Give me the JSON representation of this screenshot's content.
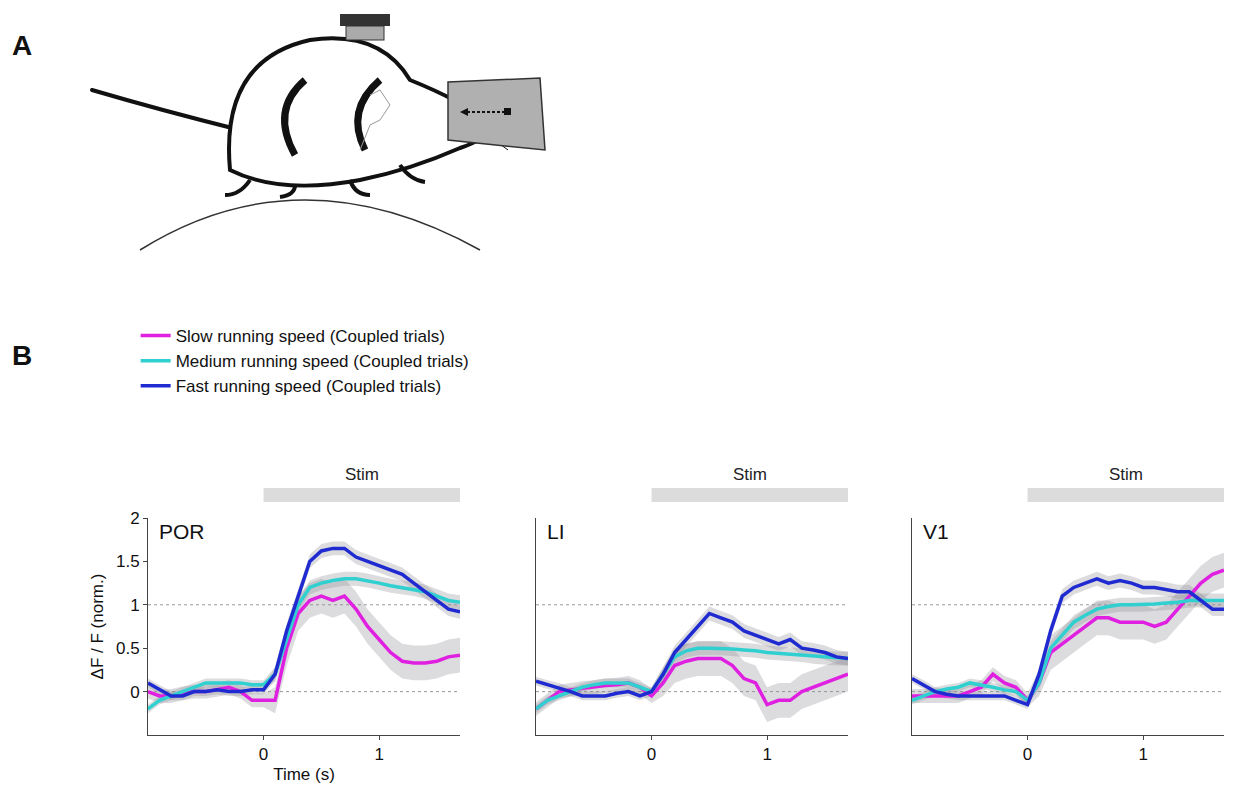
{
  "panel_labels": [
    "A",
    "B"
  ],
  "chart_data": [
    {
      "type": "line",
      "title": "POR",
      "x": [
        -1.0,
        -0.9,
        -0.8,
        -0.7,
        -0.6,
        -0.5,
        -0.4,
        -0.3,
        -0.2,
        -0.1,
        0,
        0.1,
        0.2,
        0.3,
        0.4,
        0.5,
        0.6,
        0.7,
        0.8,
        0.9,
        1.0,
        1.1,
        1.2,
        1.3,
        1.4,
        1.5,
        1.6,
        1.7
      ],
      "xlim": [
        -1,
        1.7
      ],
      "xticks": [
        0,
        1
      ],
      "ylim": [
        -0.5,
        2
      ],
      "yticks": [
        0,
        0.5,
        1,
        1.5,
        2
      ],
      "x_label": "Time (s)",
      "y_label": "ΔF / F (norm.)",
      "reference_lines": [
        0,
        1
      ],
      "stimulus": {
        "label": "Stim",
        "start": 0,
        "end": 1.7
      },
      "legend": "top left",
      "series": [
        {
          "name": "Slow running speed (Coupled trials)",
          "color": "#e020e0",
          "values": [
            0,
            -0.05,
            -0.05,
            -0.02,
            0,
            0,
            0.02,
            0.05,
            0,
            -0.1,
            -0.1,
            -0.1,
            0.5,
            0.9,
            1.05,
            1.1,
            1.05,
            1.1,
            0.95,
            0.75,
            0.6,
            0.45,
            0.35,
            0.33,
            0.33,
            0.35,
            0.4,
            0.42
          ],
          "error": [
            0.08,
            0.08,
            0.08,
            0.08,
            0.08,
            0.08,
            0.08,
            0.08,
            0.08,
            0.08,
            0.08,
            0.15,
            0.2,
            0.2,
            0.2,
            0.2,
            0.2,
            0.2,
            0.2,
            0.2,
            0.2,
            0.2,
            0.2,
            0.2,
            0.2,
            0.2,
            0.2,
            0.2
          ]
        },
        {
          "name": "Medium running speed (Coupled trials)",
          "color": "#30d0d0",
          "values": [
            -0.2,
            -0.1,
            -0.05,
            0,
            0.05,
            0.1,
            0.1,
            0.1,
            0.1,
            0.08,
            0.08,
            0.2,
            0.6,
            1.0,
            1.2,
            1.25,
            1.28,
            1.3,
            1.3,
            1.28,
            1.25,
            1.22,
            1.2,
            1.18,
            1.15,
            1.1,
            1.05,
            1.03
          ],
          "error": [
            0.05,
            0.05,
            0.05,
            0.05,
            0.05,
            0.05,
            0.05,
            0.05,
            0.05,
            0.05,
            0.05,
            0.08,
            0.08,
            0.08,
            0.08,
            0.08,
            0.08,
            0.08,
            0.08,
            0.08,
            0.08,
            0.08,
            0.08,
            0.08,
            0.08,
            0.08,
            0.08,
            0.08
          ]
        },
        {
          "name": "Fast running speed (Coupled trials)",
          "color": "#1f2bd0",
          "values": [
            0.1,
            0.02,
            -0.05,
            -0.05,
            0,
            0,
            0.02,
            0,
            0,
            0.02,
            0.02,
            0.2,
            0.7,
            1.1,
            1.5,
            1.62,
            1.65,
            1.65,
            1.55,
            1.5,
            1.45,
            1.4,
            1.35,
            1.25,
            1.15,
            1.05,
            0.95,
            0.92
          ],
          "error": [
            0.05,
            0.05,
            0.05,
            0.05,
            0.05,
            0.05,
            0.05,
            0.05,
            0.05,
            0.05,
            0.05,
            0.08,
            0.08,
            0.08,
            0.08,
            0.08,
            0.08,
            0.08,
            0.08,
            0.08,
            0.08,
            0.08,
            0.08,
            0.08,
            0.08,
            0.08,
            0.08,
            0.08
          ]
        }
      ]
    },
    {
      "type": "line",
      "title": "LI",
      "x": [
        -1.0,
        -0.9,
        -0.8,
        -0.7,
        -0.6,
        -0.5,
        -0.4,
        -0.3,
        -0.2,
        -0.1,
        0,
        0.1,
        0.2,
        0.3,
        0.4,
        0.5,
        0.6,
        0.7,
        0.8,
        0.9,
        1.0,
        1.1,
        1.2,
        1.3,
        1.4,
        1.5,
        1.6,
        1.7
      ],
      "xlim": [
        -1,
        1.7
      ],
      "xticks": [
        0,
        1
      ],
      "ylim": [
        -0.5,
        2
      ],
      "yticks": [
        0,
        0.5,
        1,
        1.5,
        2
      ],
      "tick_labels": "x",
      "reference_lines": [
        0,
        1
      ],
      "stimulus": {
        "label": "Stim",
        "start": 0,
        "end": 1.7
      },
      "series": [
        {
          "name": "Slow running speed (Coupled trials)",
          "color": "#e020e0",
          "values": [
            -0.2,
            -0.1,
            0,
            0.02,
            0.04,
            0.05,
            0.07,
            0.08,
            0.1,
            0.05,
            -0.05,
            0.1,
            0.3,
            0.35,
            0.38,
            0.38,
            0.38,
            0.3,
            0.15,
            0.1,
            -0.15,
            -0.1,
            -0.1,
            0,
            0.05,
            0.1,
            0.15,
            0.2
          ],
          "error": [
            0.08,
            0.08,
            0.08,
            0.08,
            0.08,
            0.08,
            0.08,
            0.08,
            0.08,
            0.08,
            0.08,
            0.15,
            0.2,
            0.2,
            0.2,
            0.2,
            0.2,
            0.2,
            0.2,
            0.2,
            0.2,
            0.2,
            0.2,
            0.2,
            0.2,
            0.2,
            0.2,
            0.2
          ]
        },
        {
          "name": "Medium running speed (Coupled trials)",
          "color": "#30d0d0",
          "values": [
            -0.2,
            -0.1,
            -0.05,
            0,
            0.05,
            0.08,
            0.1,
            0.1,
            0.1,
            0.05,
            0,
            0.2,
            0.4,
            0.47,
            0.5,
            0.5,
            0.5,
            0.49,
            0.48,
            0.47,
            0.45,
            0.44,
            0.43,
            0.42,
            0.4,
            0.39,
            0.38,
            0.38
          ],
          "error": [
            0.05,
            0.05,
            0.05,
            0.05,
            0.05,
            0.05,
            0.05,
            0.05,
            0.05,
            0.05,
            0.05,
            0.08,
            0.08,
            0.08,
            0.08,
            0.08,
            0.08,
            0.08,
            0.08,
            0.08,
            0.08,
            0.08,
            0.08,
            0.08,
            0.08,
            0.08,
            0.08,
            0.08
          ]
        },
        {
          "name": "Fast running speed (Coupled trials)",
          "color": "#1f2bd0",
          "values": [
            0.12,
            0.08,
            0.05,
            0,
            -0.05,
            -0.05,
            -0.05,
            -0.02,
            0,
            -0.05,
            0,
            0.2,
            0.45,
            0.6,
            0.75,
            0.9,
            0.85,
            0.8,
            0.7,
            0.65,
            0.6,
            0.55,
            0.6,
            0.5,
            0.48,
            0.45,
            0.4,
            0.38
          ],
          "error": [
            0.05,
            0.05,
            0.05,
            0.05,
            0.05,
            0.05,
            0.05,
            0.05,
            0.05,
            0.05,
            0.05,
            0.08,
            0.08,
            0.08,
            0.08,
            0.08,
            0.08,
            0.08,
            0.08,
            0.08,
            0.08,
            0.08,
            0.08,
            0.08,
            0.08,
            0.08,
            0.08,
            0.08
          ]
        }
      ]
    },
    {
      "type": "line",
      "title": "V1",
      "x": [
        -1.0,
        -0.9,
        -0.8,
        -0.7,
        -0.6,
        -0.5,
        -0.4,
        -0.3,
        -0.2,
        -0.1,
        0,
        0.1,
        0.2,
        0.3,
        0.4,
        0.5,
        0.6,
        0.7,
        0.8,
        0.9,
        1.0,
        1.1,
        1.2,
        1.3,
        1.4,
        1.5,
        1.6,
        1.7
      ],
      "xlim": [
        -1,
        1.7
      ],
      "xticks": [
        0,
        1
      ],
      "ylim": [
        -0.5,
        2
      ],
      "yticks": [
        0,
        0.5,
        1,
        1.5,
        2
      ],
      "tick_labels": "x",
      "reference_lines": [
        0,
        1
      ],
      "stimulus": {
        "label": "Stim",
        "start": 0,
        "end": 1.7
      },
      "series": [
        {
          "name": "Slow running speed (Coupled trials)",
          "color": "#e020e0",
          "values": [
            -0.05,
            -0.05,
            -0.05,
            -0.05,
            -0.05,
            0,
            0.05,
            0.2,
            0.1,
            0.05,
            -0.1,
            0.1,
            0.45,
            0.55,
            0.65,
            0.75,
            0.85,
            0.85,
            0.8,
            0.8,
            0.8,
            0.75,
            0.8,
            0.95,
            1.1,
            1.25,
            1.35,
            1.4
          ],
          "error": [
            0.08,
            0.08,
            0.08,
            0.08,
            0.08,
            0.08,
            0.08,
            0.08,
            0.08,
            0.08,
            0.08,
            0.15,
            0.2,
            0.2,
            0.2,
            0.2,
            0.2,
            0.2,
            0.2,
            0.2,
            0.2,
            0.2,
            0.2,
            0.2,
            0.2,
            0.2,
            0.2,
            0.2
          ]
        },
        {
          "name": "Medium running speed (Coupled trials)",
          "color": "#30d0d0",
          "values": [
            -0.1,
            -0.05,
            0,
            0.03,
            0.05,
            0.1,
            0.08,
            0.05,
            0.02,
            0,
            -0.1,
            0.1,
            0.5,
            0.65,
            0.8,
            0.88,
            0.95,
            0.98,
            1.0,
            1.0,
            1.0,
            1.01,
            1.02,
            1.03,
            1.05,
            1.05,
            1.05,
            1.05
          ],
          "error": [
            0.05,
            0.05,
            0.05,
            0.05,
            0.05,
            0.05,
            0.05,
            0.05,
            0.05,
            0.05,
            0.05,
            0.08,
            0.08,
            0.08,
            0.08,
            0.08,
            0.08,
            0.08,
            0.08,
            0.08,
            0.08,
            0.08,
            0.08,
            0.08,
            0.08,
            0.08,
            0.08,
            0.08
          ]
        },
        {
          "name": "Fast running speed (Coupled trials)",
          "color": "#1f2bd0",
          "values": [
            0.15,
            0.08,
            0,
            -0.03,
            -0.05,
            -0.05,
            -0.05,
            -0.05,
            -0.05,
            -0.1,
            -0.15,
            0.2,
            0.7,
            1.1,
            1.2,
            1.25,
            1.3,
            1.25,
            1.28,
            1.25,
            1.2,
            1.2,
            1.18,
            1.15,
            1.15,
            1.05,
            0.95,
            0.95
          ],
          "error": [
            0.05,
            0.05,
            0.05,
            0.05,
            0.05,
            0.05,
            0.05,
            0.05,
            0.05,
            0.05,
            0.05,
            0.08,
            0.08,
            0.08,
            0.08,
            0.08,
            0.08,
            0.08,
            0.08,
            0.08,
            0.08,
            0.08,
            0.08,
            0.08,
            0.08,
            0.08,
            0.08,
            0.08
          ]
        }
      ]
    }
  ]
}
